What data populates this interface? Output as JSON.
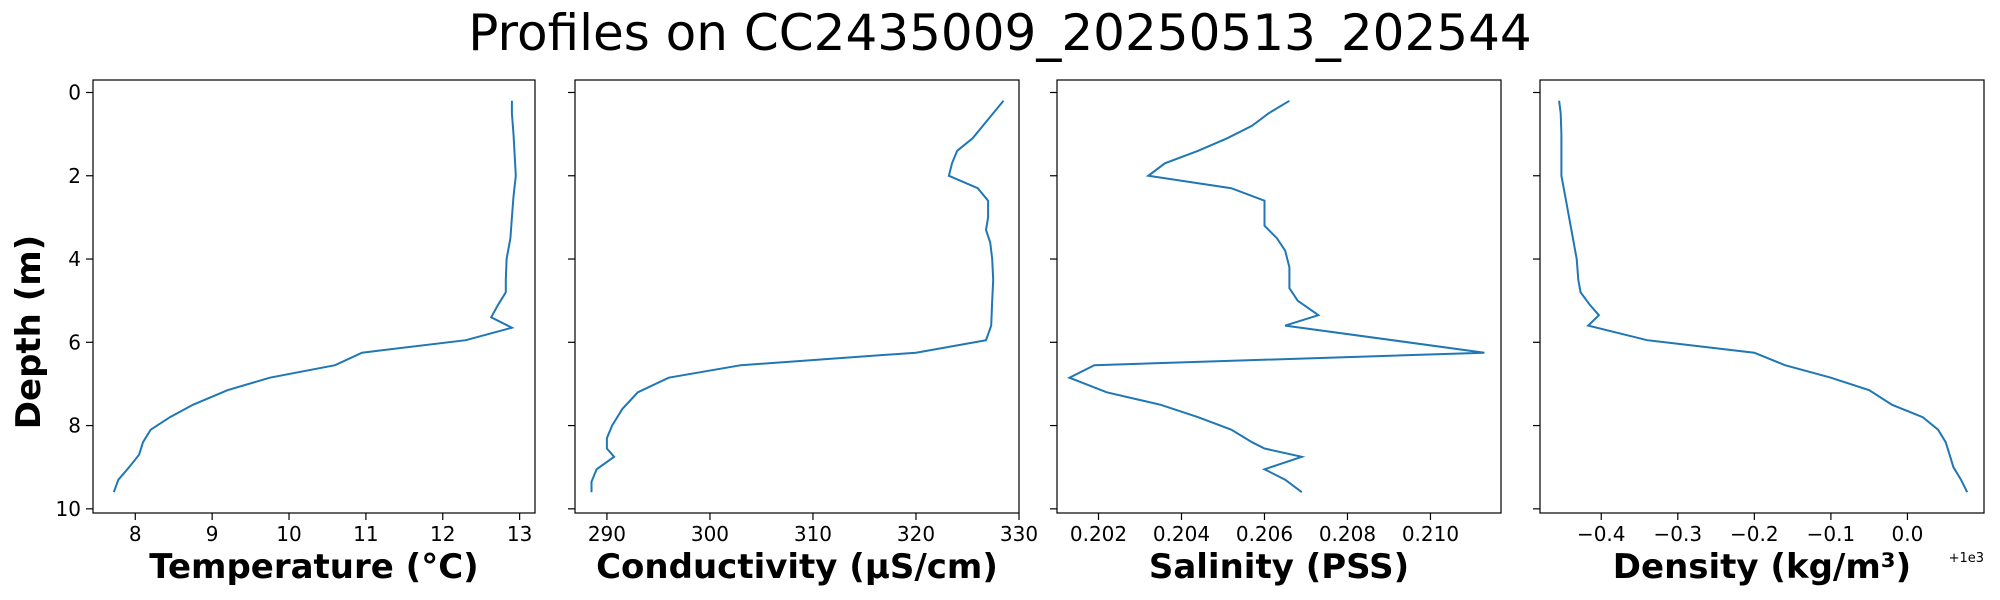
{
  "figure": {
    "title": "Profiles on CC2435009_20250513_202544",
    "ylabel": "Depth (m)"
  },
  "chart_data": [
    {
      "type": "line",
      "xlabel": "Temperature (°C)",
      "ylabel": "Depth (m)",
      "xlim": [
        7.45,
        13.2
      ],
      "ylim": [
        10.1,
        -0.3
      ],
      "y_inverted": true,
      "xticks": [
        8,
        9,
        10,
        11,
        12,
        13
      ],
      "yticks": [
        0,
        2,
        4,
        6,
        8,
        10
      ],
      "color": "#1f77b4",
      "points": [
        [
          12.9,
          0.2
        ],
        [
          12.9,
          0.5
        ],
        [
          12.92,
          1.0
        ],
        [
          12.95,
          2.0
        ],
        [
          12.92,
          2.5
        ],
        [
          12.9,
          3.0
        ],
        [
          12.88,
          3.5
        ],
        [
          12.83,
          4.0
        ],
        [
          12.82,
          4.5
        ],
        [
          12.82,
          4.8
        ],
        [
          12.72,
          5.1
        ],
        [
          12.63,
          5.4
        ],
        [
          12.9,
          5.65
        ],
        [
          12.3,
          5.95
        ],
        [
          10.95,
          6.25
        ],
        [
          10.6,
          6.55
        ],
        [
          9.75,
          6.85
        ],
        [
          9.2,
          7.15
        ],
        [
          8.75,
          7.5
        ],
        [
          8.45,
          7.8
        ],
        [
          8.2,
          8.1
        ],
        [
          8.1,
          8.4
        ],
        [
          8.05,
          8.7
        ],
        [
          7.92,
          9.0
        ],
        [
          7.78,
          9.3
        ],
        [
          7.72,
          9.6
        ]
      ]
    },
    {
      "type": "line",
      "xlabel": "Conductivity (µS/cm)",
      "xlim": [
        286.9,
        330.0
      ],
      "ylim": [
        10.1,
        -0.3
      ],
      "y_inverted": true,
      "xticks": [
        290,
        300,
        310,
        320,
        330
      ],
      "color": "#1f77b4",
      "points": [
        [
          328.5,
          0.2
        ],
        [
          327.5,
          0.5
        ],
        [
          326.5,
          0.8
        ],
        [
          325.5,
          1.1
        ],
        [
          324.0,
          1.4
        ],
        [
          323.5,
          1.7
        ],
        [
          323.2,
          2.0
        ],
        [
          326.0,
          2.3
        ],
        [
          327.0,
          2.6
        ],
        [
          327.0,
          3.0
        ],
        [
          326.8,
          3.3
        ],
        [
          327.2,
          3.6
        ],
        [
          327.4,
          4.0
        ],
        [
          327.5,
          4.5
        ],
        [
          327.4,
          5.0
        ],
        [
          327.3,
          5.6
        ],
        [
          326.8,
          5.95
        ],
        [
          320.0,
          6.25
        ],
        [
          303.0,
          6.55
        ],
        [
          296.0,
          6.85
        ],
        [
          293.0,
          7.2
        ],
        [
          291.5,
          7.6
        ],
        [
          290.5,
          8.0
        ],
        [
          290.0,
          8.3
        ],
        [
          290.0,
          8.55
        ],
        [
          290.7,
          8.75
        ],
        [
          289.0,
          9.05
        ],
        [
          288.5,
          9.35
        ],
        [
          288.5,
          9.6
        ]
      ]
    },
    {
      "type": "line",
      "xlabel": "Salinity (PSS)",
      "xlim": [
        0.201,
        0.2117
      ],
      "ylim": [
        10.1,
        -0.3
      ],
      "y_inverted": true,
      "xticks": [
        0.202,
        0.204,
        0.206,
        0.208,
        0.21
      ],
      "xtick_labels": [
        "0.202",
        "0.204",
        "0.206",
        "0.208",
        "0.210"
      ],
      "color": "#1f77b4",
      "points": [
        [
          0.2066,
          0.2
        ],
        [
          0.2061,
          0.5
        ],
        [
          0.2057,
          0.8
        ],
        [
          0.2051,
          1.1
        ],
        [
          0.2044,
          1.4
        ],
        [
          0.2036,
          1.7
        ],
        [
          0.2032,
          2.0
        ],
        [
          0.2052,
          2.3
        ],
        [
          0.206,
          2.6
        ],
        [
          0.206,
          3.2
        ],
        [
          0.2063,
          3.5
        ],
        [
          0.2065,
          3.8
        ],
        [
          0.2066,
          4.2
        ],
        [
          0.2066,
          4.7
        ],
        [
          0.2068,
          5.0
        ],
        [
          0.2073,
          5.35
        ],
        [
          0.2065,
          5.6
        ],
        [
          0.2113,
          6.25
        ],
        [
          0.2019,
          6.55
        ],
        [
          0.2013,
          6.85
        ],
        [
          0.2022,
          7.2
        ],
        [
          0.2035,
          7.5
        ],
        [
          0.2044,
          7.8
        ],
        [
          0.2052,
          8.1
        ],
        [
          0.2057,
          8.4
        ],
        [
          0.206,
          8.55
        ],
        [
          0.2069,
          8.75
        ],
        [
          0.206,
          9.05
        ],
        [
          0.2065,
          9.3
        ],
        [
          0.2069,
          9.6
        ]
      ]
    },
    {
      "type": "line",
      "xlabel": "Density (kg/m³)",
      "xlim": [
        -0.48,
        0.1
      ],
      "ylim": [
        10.1,
        -0.3
      ],
      "y_inverted": true,
      "xticks": [
        -0.4,
        -0.3,
        -0.2,
        -0.1,
        0.0
      ],
      "xtick_labels": [
        "−0.4",
        "−0.3",
        "−0.2",
        "−0.1",
        "0.0"
      ],
      "x_offset_label": "+1e3",
      "color": "#1f77b4",
      "points": [
        [
          -0.455,
          0.2
        ],
        [
          -0.453,
          0.5
        ],
        [
          -0.452,
          1.0
        ],
        [
          -0.452,
          1.5
        ],
        [
          -0.452,
          2.0
        ],
        [
          -0.447,
          2.5
        ],
        [
          -0.442,
          3.0
        ],
        [
          -0.437,
          3.5
        ],
        [
          -0.432,
          4.0
        ],
        [
          -0.43,
          4.5
        ],
        [
          -0.427,
          4.8
        ],
        [
          -0.415,
          5.1
        ],
        [
          -0.403,
          5.35
        ],
        [
          -0.417,
          5.6
        ],
        [
          -0.34,
          5.95
        ],
        [
          -0.2,
          6.25
        ],
        [
          -0.16,
          6.55
        ],
        [
          -0.1,
          6.85
        ],
        [
          -0.05,
          7.15
        ],
        [
          -0.02,
          7.5
        ],
        [
          0.02,
          7.8
        ],
        [
          0.04,
          8.1
        ],
        [
          0.05,
          8.4
        ],
        [
          0.055,
          8.7
        ],
        [
          0.06,
          9.0
        ],
        [
          0.07,
          9.3
        ],
        [
          0.078,
          9.6
        ]
      ]
    }
  ]
}
